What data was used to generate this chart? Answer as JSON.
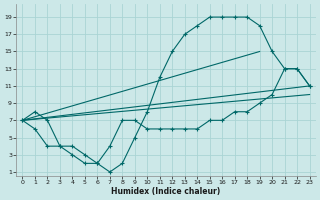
{
  "xlabel": "Humidex (Indice chaleur)",
  "bg_color": "#cce8e8",
  "grid_color": "#aad4d4",
  "line_color": "#006868",
  "xlim": [
    -0.5,
    23.5
  ],
  "ylim": [
    0.5,
    20.5
  ],
  "xticks": [
    0,
    1,
    2,
    3,
    4,
    5,
    6,
    7,
    8,
    9,
    10,
    11,
    12,
    13,
    14,
    15,
    16,
    17,
    18,
    19,
    20,
    21,
    22,
    23
  ],
  "yticks": [
    1,
    3,
    5,
    7,
    9,
    11,
    13,
    15,
    17,
    19
  ],
  "curve1_x": [
    0,
    1,
    2,
    3,
    4,
    5,
    6,
    7,
    8,
    9,
    10,
    11,
    12,
    13,
    14,
    15,
    16,
    17,
    18,
    19,
    20,
    21,
    22,
    23
  ],
  "curve1_y": [
    7,
    8,
    7,
    4,
    4,
    3,
    2,
    1,
    2,
    5,
    8,
    12,
    15,
    17,
    18,
    19,
    19,
    19,
    19,
    18,
    15,
    13,
    13,
    11
  ],
  "curve2_x": [
    0,
    1,
    2,
    3,
    4,
    5,
    6,
    7,
    8,
    9,
    10,
    11,
    12,
    13,
    14,
    15,
    16,
    17,
    18,
    19,
    20,
    21,
    22,
    23
  ],
  "curve2_y": [
    7,
    6,
    4,
    4,
    3,
    2,
    2,
    4,
    7,
    7,
    6,
    6,
    6,
    6,
    6,
    7,
    7,
    8,
    8,
    9,
    10,
    13,
    13,
    11
  ],
  "line1_x": [
    0,
    23
  ],
  "line1_y": [
    7,
    10
  ],
  "line2_x": [
    0,
    23
  ],
  "line2_y": [
    7,
    11
  ],
  "line3_x": [
    0,
    19
  ],
  "line3_y": [
    7,
    15
  ]
}
